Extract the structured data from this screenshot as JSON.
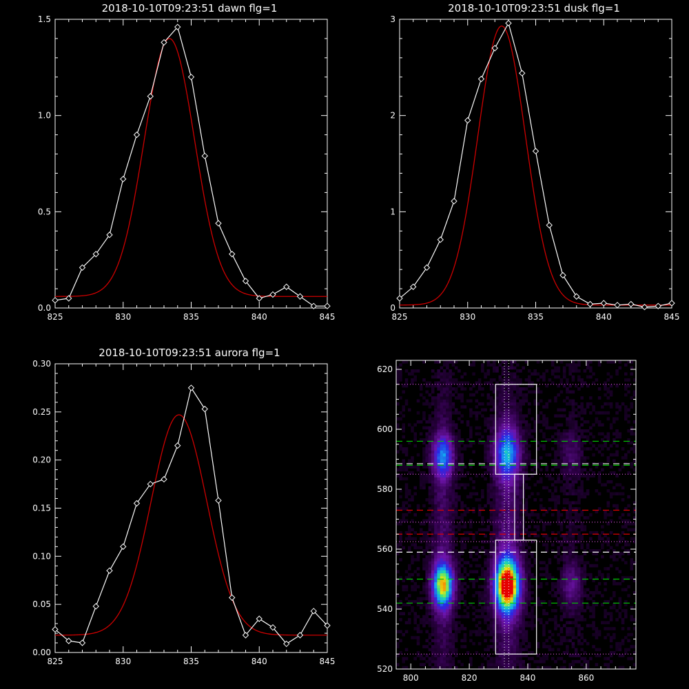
{
  "colors": {
    "background": "#000000",
    "observed": "#ffffff",
    "fit": "#d00000",
    "green_line": "#00cc00",
    "red_line": "#dd0000",
    "white_line": "#ffffff",
    "grid_dotted": "#ff66ff"
  },
  "chart_data": [
    {
      "type": "line",
      "title": "2018-10-10T09:23:51 dawn flg=1",
      "xlim": [
        825,
        845
      ],
      "ylim": [
        0,
        1.5
      ],
      "xticks": [
        "825",
        "830",
        "835",
        "840",
        "845"
      ],
      "yticks": [
        "0.0",
        "0.5",
        "1.0",
        "1.5"
      ],
      "ytick_values": [
        0,
        0.5,
        1.0,
        1.5
      ],
      "x": [
        825,
        826,
        827,
        828,
        829,
        830,
        831,
        832,
        833,
        834,
        835,
        836,
        837,
        838,
        839,
        840,
        841,
        842,
        843,
        844,
        845
      ],
      "series": [
        {
          "values": [
            0.04,
            0.05,
            0.21,
            0.28,
            0.38,
            0.67,
            0.9,
            1.1,
            1.38,
            1.46,
            1.2,
            0.79,
            0.44,
            0.28,
            0.14,
            0.05,
            0.07,
            0.11,
            0.06,
            0.01,
            0.01
          ]
        }
      ],
      "fit": {
        "amplitude": 1.34,
        "center": 833.4,
        "sigma": 1.85,
        "baseline": 0.06
      }
    },
    {
      "type": "line",
      "title": "2018-10-10T09:23:51 dusk flg=1",
      "xlim": [
        825,
        845
      ],
      "ylim": [
        0,
        3
      ],
      "xticks": [
        "825",
        "830",
        "835",
        "840",
        "845"
      ],
      "yticks": [
        "0",
        "1",
        "2",
        "3"
      ],
      "ytick_values": [
        0,
        1,
        2,
        3
      ],
      "x": [
        825,
        826,
        827,
        828,
        829,
        830,
        831,
        832,
        833,
        834,
        835,
        836,
        837,
        838,
        839,
        840,
        841,
        842,
        843,
        844,
        845
      ],
      "series": [
        {
          "values": [
            0.1,
            0.22,
            0.42,
            0.71,
            1.11,
            1.95,
            2.38,
            2.7,
            2.96,
            2.44,
            1.63,
            0.86,
            0.34,
            0.12,
            0.04,
            0.05,
            0.03,
            0.04,
            0.01,
            0.02,
            0.05
          ]
        }
      ],
      "fit": {
        "amplitude": 2.9,
        "center": 832.5,
        "sigma": 1.75,
        "baseline": 0.03
      }
    },
    {
      "type": "line",
      "title": "2018-10-10T09:23:51 aurora flg=1",
      "xlim": [
        825,
        845
      ],
      "ylim": [
        0,
        0.3
      ],
      "xticks": [
        "825",
        "830",
        "835",
        "840",
        "845"
      ],
      "yticks": [
        "0.00",
        "0.05",
        "0.10",
        "0.15",
        "0.20",
        "0.25",
        "0.30"
      ],
      "ytick_values": [
        0,
        0.05,
        0.1,
        0.15,
        0.2,
        0.25,
        0.3
      ],
      "x": [
        825,
        826,
        827,
        828,
        829,
        830,
        831,
        832,
        833,
        834,
        835,
        836,
        837,
        838,
        839,
        840,
        841,
        842,
        843,
        844,
        845
      ],
      "series": [
        {
          "values": [
            0.024,
            0.012,
            0.01,
            0.048,
            0.085,
            0.11,
            0.155,
            0.175,
            0.18,
            0.215,
            0.275,
            0.253,
            0.158,
            0.057,
            0.018,
            0.035,
            0.026,
            0.009,
            0.018,
            0.043,
            0.028
          ]
        }
      ],
      "fit": {
        "amplitude": 0.229,
        "center": 834.1,
        "sigma": 2.05,
        "baseline": 0.018
      }
    },
    {
      "type": "heatmap",
      "xlim": [
        795,
        877
      ],
      "ylim": [
        520,
        623
      ],
      "xticks": [
        "800",
        "820",
        "840",
        "860"
      ],
      "yticks": [
        "520",
        "540",
        "560",
        "580",
        "600",
        "620"
      ],
      "xtick_values": [
        800,
        820,
        840,
        860
      ],
      "ytick_values": [
        520,
        540,
        560,
        580,
        600,
        620
      ],
      "blobs": [
        {
          "x": 811,
          "y": 548,
          "sx": 2.5,
          "sy": 5,
          "peak": 0.75
        },
        {
          "x": 833,
          "y": 548,
          "sx": 3.0,
          "sy": 6,
          "peak": 1.0
        },
        {
          "x": 811,
          "y": 591,
          "sx": 2.5,
          "sy": 5,
          "peak": 0.45
        },
        {
          "x": 833,
          "y": 592,
          "sx": 3.0,
          "sy": 6,
          "peak": 0.5
        },
        {
          "x": 855,
          "y": 548,
          "sx": 2.5,
          "sy": 5,
          "peak": 0.18
        },
        {
          "x": 855,
          "y": 592,
          "sx": 2.5,
          "sy": 5,
          "peak": 0.12
        }
      ],
      "boxes": [
        {
          "x0": 829,
          "x1": 843,
          "y0": 525,
          "y1": 563
        },
        {
          "x0": 829,
          "x1": 843,
          "y0": 585,
          "y1": 615
        },
        {
          "x0": 835.5,
          "x1": 838.5,
          "y0": 563,
          "y1": 585
        }
      ],
      "hlines": [
        {
          "y": 596,
          "style": "green"
        },
        {
          "y": 588,
          "style": "green"
        },
        {
          "y": 588.5,
          "style": "white"
        },
        {
          "y": 573,
          "style": "red"
        },
        {
          "y": 565,
          "style": "red"
        },
        {
          "y": 559,
          "style": "white"
        },
        {
          "y": 550,
          "style": "green"
        },
        {
          "y": 542,
          "style": "green"
        }
      ],
      "dotted_hlines": [
        615,
        585,
        569,
        562.5,
        525
      ],
      "dotted_vlines": [
        832,
        833.5
      ]
    }
  ]
}
